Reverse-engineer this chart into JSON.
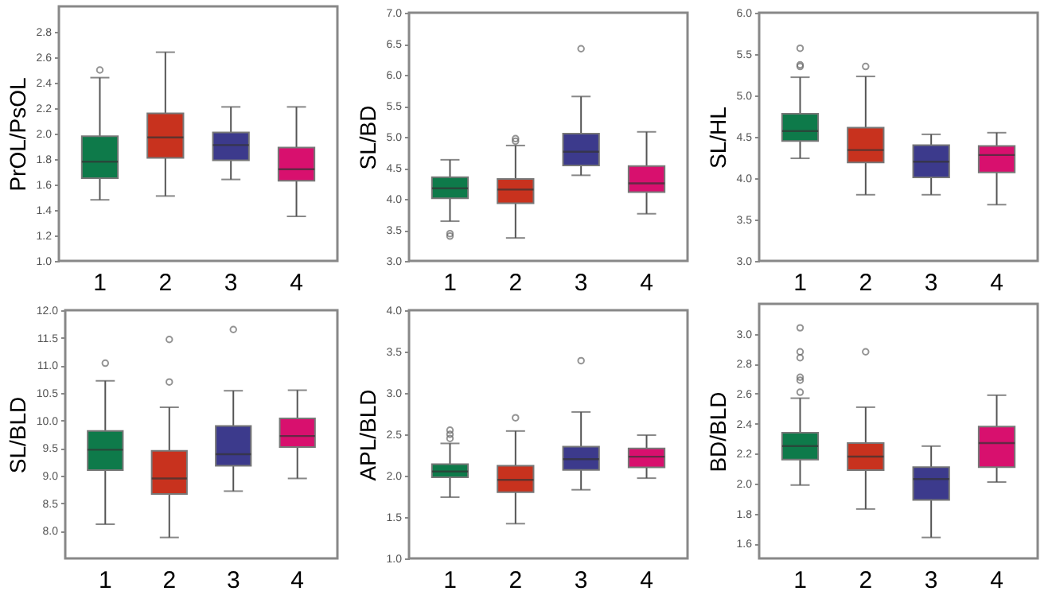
{
  "chart_data": [
    {
      "type": "box",
      "ylabel": "PrOL/PsOL",
      "categories": [
        "1",
        "2",
        "3",
        "4"
      ],
      "colors": [
        "#0e7a4a",
        "#c8321e",
        "#3c3a8c",
        "#d8106e"
      ],
      "ylim": [
        1.0,
        3.0
      ],
      "yticks": [
        {
          "value": 1,
          "label": "1.0"
        },
        1.2,
        1.4,
        1.6,
        1.8,
        {
          "value": 2,
          "label": "2.0"
        },
        2.2,
        2.4,
        2.6,
        2.8
      ],
      "boxes": [
        {
          "low": 1.48,
          "q1": 1.65,
          "median": 1.78,
          "q3": 1.98,
          "high": 2.44,
          "outliers": [
            2.5
          ]
        },
        {
          "low": 1.51,
          "q1": 1.81,
          "median": 1.97,
          "q3": 2.16,
          "high": 2.64
        },
        {
          "low": 1.64,
          "q1": 1.79,
          "median": 1.91,
          "q3": 2.01,
          "high": 2.21
        },
        {
          "low": 1.35,
          "q1": 1.63,
          "median": 1.72,
          "q3": 1.89,
          "high": 2.21
        }
      ]
    },
    {
      "type": "box",
      "ylabel": "SL/BD",
      "categories": [
        "1",
        "2",
        "3",
        "4"
      ],
      "colors": [
        "#0e7a4a",
        "#c8321e",
        "#3c3a8c",
        "#d8106e"
      ],
      "ylim": [
        3.0,
        7.0
      ],
      "yticks": [
        {
          "value": 3,
          "label": "3.0"
        },
        3.5,
        {
          "value": 4,
          "label": "4.0"
        },
        4.5,
        {
          "value": 5,
          "label": "5.0"
        },
        5.5,
        {
          "value": 6,
          "label": "6.0"
        },
        6.5,
        {
          "value": 7,
          "label": "7.0"
        }
      ],
      "boxes": [
        {
          "low": 3.64,
          "q1": 4.01,
          "median": 4.17,
          "q3": 4.35,
          "high": 4.63,
          "outliers": [
            3.4,
            3.44
          ]
        },
        {
          "low": 3.37,
          "q1": 3.93,
          "median": 4.15,
          "q3": 4.32,
          "high": 4.86,
          "outliers": [
            4.93,
            4.97
          ]
        },
        {
          "low": 4.38,
          "q1": 4.54,
          "median": 4.76,
          "q3": 5.05,
          "high": 5.65,
          "outliers": [
            6.42
          ]
        },
        {
          "low": 3.76,
          "q1": 4.11,
          "median": 4.25,
          "q3": 4.53,
          "high": 5.08
        }
      ]
    },
    {
      "type": "box",
      "ylabel": "SL/HL",
      "categories": [
        "1",
        "2",
        "3",
        "4"
      ],
      "colors": [
        "#0e7a4a",
        "#c8321e",
        "#3c3a8c",
        "#d8106e"
      ],
      "ylim": [
        3.0,
        6.0
      ],
      "yticks": [
        {
          "value": 3,
          "label": "3.0"
        },
        3.5,
        {
          "value": 4,
          "label": "4.0"
        },
        4.5,
        {
          "value": 5,
          "label": "5.0"
        },
        5.5,
        {
          "value": 6,
          "label": "6.0"
        }
      ],
      "boxes": [
        {
          "low": 4.24,
          "q1": 4.45,
          "median": 4.57,
          "q3": 4.78,
          "high": 5.22,
          "outliers": [
            5.35,
            5.37,
            5.57
          ]
        },
        {
          "low": 3.8,
          "q1": 4.19,
          "median": 4.34,
          "q3": 4.61,
          "high": 5.23,
          "outliers": [
            5.35
          ]
        },
        {
          "low": 3.8,
          "q1": 4.01,
          "median": 4.2,
          "q3": 4.4,
          "high": 4.53
        },
        {
          "low": 3.68,
          "q1": 4.07,
          "median": 4.28,
          "q3": 4.39,
          "high": 4.55
        }
      ]
    },
    {
      "type": "box",
      "ylabel": "SL/BLD",
      "categories": [
        "1",
        "2",
        "3",
        "4"
      ],
      "colors": [
        "#0e7a4a",
        "#c8321e",
        "#3c3a8c",
        "#d8106e"
      ],
      "ylim": [
        7.5,
        12.0
      ],
      "yticks": [
        {
          "value": 8,
          "label": "8.0"
        },
        8.5,
        {
          "value": 9,
          "label": "9.0"
        },
        9.5,
        {
          "value": 10,
          "label": "10.0"
        },
        10.5,
        {
          "value": 11,
          "label": "11.0"
        },
        11.5,
        {
          "value": 12,
          "label": "12.0"
        }
      ],
      "boxes": [
        {
          "low": 8.12,
          "q1": 9.1,
          "median": 9.47,
          "q3": 9.81,
          "high": 10.72,
          "outliers": [
            11.04
          ]
        },
        {
          "low": 7.88,
          "q1": 8.67,
          "median": 8.95,
          "q3": 9.45,
          "high": 10.24,
          "outliers": [
            10.7,
            11.47
          ]
        },
        {
          "low": 8.72,
          "q1": 9.18,
          "median": 9.39,
          "q3": 9.9,
          "high": 10.54,
          "outliers": [
            11.65
          ]
        },
        {
          "low": 8.95,
          "q1": 9.52,
          "median": 9.72,
          "q3": 10.04,
          "high": 10.55
        }
      ]
    },
    {
      "type": "box",
      "ylabel": "APL/BLD",
      "categories": [
        "1",
        "2",
        "3",
        "4"
      ],
      "colors": [
        "#0e7a4a",
        "#c8321e",
        "#3c3a8c",
        "#d8106e"
      ],
      "ylim": [
        1.0,
        4.0
      ],
      "yticks": [
        {
          "value": 1,
          "label": "1.0"
        },
        1.5,
        {
          "value": 2,
          "label": "2.0"
        },
        2.5,
        {
          "value": 3,
          "label": "3.0"
        },
        3.5,
        {
          "value": 4,
          "label": "4.0"
        }
      ],
      "boxes": [
        {
          "low": 1.74,
          "q1": 1.98,
          "median": 2.05,
          "q3": 2.14,
          "high": 2.39,
          "outliers": [
            2.45,
            2.5,
            2.55
          ]
        },
        {
          "low": 1.42,
          "q1": 1.8,
          "median": 1.95,
          "q3": 2.12,
          "high": 2.54,
          "outliers": [
            2.7
          ]
        },
        {
          "low": 1.83,
          "q1": 2.07,
          "median": 2.2,
          "q3": 2.35,
          "high": 2.77,
          "outliers": [
            3.39
          ]
        },
        {
          "low": 1.97,
          "q1": 2.1,
          "median": 2.23,
          "q3": 2.33,
          "high": 2.49
        }
      ]
    },
    {
      "type": "box",
      "ylabel": "BD/BLD",
      "categories": [
        "1",
        "2",
        "3",
        "4"
      ],
      "colors": [
        "#0e7a4a",
        "#c8321e",
        "#3c3a8c",
        "#d8106e"
      ],
      "ylim": [
        1.5,
        3.2
      ],
      "yticks": [
        1.6,
        1.8,
        {
          "value": 2,
          "label": "2.0"
        },
        2.2,
        2.4,
        2.6,
        2.8,
        {
          "value": 3,
          "label": "3.0"
        }
      ],
      "boxes": [
        {
          "low": 1.99,
          "q1": 2.16,
          "median": 2.25,
          "q3": 2.34,
          "high": 2.57,
          "outliers": [
            2.61,
            2.69,
            2.71,
            2.84,
            2.88,
            3.04
          ]
        },
        {
          "low": 1.83,
          "q1": 2.09,
          "median": 2.18,
          "q3": 2.27,
          "high": 2.51,
          "outliers": [
            2.88
          ]
        },
        {
          "low": 1.64,
          "q1": 1.89,
          "median": 2.03,
          "q3": 2.11,
          "high": 2.25
        },
        {
          "low": 2.01,
          "q1": 2.11,
          "median": 2.27,
          "q3": 2.38,
          "high": 2.59
        }
      ]
    }
  ]
}
